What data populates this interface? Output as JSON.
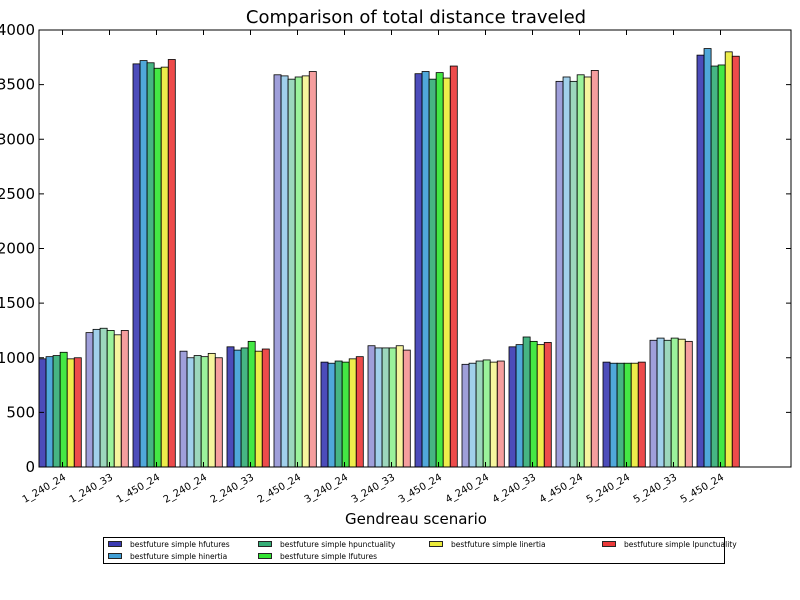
{
  "chart_data": {
    "type": "bar",
    "title": "Comparison of total distance traveled",
    "xlabel": "Gendreau scenario",
    "ylabel": "",
    "ylim": [
      0,
      4000
    ],
    "yticks": [
      "0",
      "500",
      "1000",
      "1500",
      "2000",
      "2500",
      "3000",
      "3500",
      "4000"
    ],
    "grid": false,
    "legend_position": "bottom",
    "categories": [
      "1_240_24",
      "1_240_33",
      "1_450_24",
      "2_240_24",
      "2_240_33",
      "2_450_24",
      "3_240_24",
      "3_240_33",
      "3_450_24",
      "4_240_24",
      "4_240_33",
      "4_450_24",
      "5_240_24",
      "5_240_33",
      "5_450_24"
    ],
    "series": [
      {
        "name": "bestfuture simple hfutures",
        "color": "#1a1aa6",
        "values": [
          990,
          1230,
          3690,
          1060,
          1100,
          3590,
          960,
          1110,
          3600,
          940,
          1100,
          3530,
          960,
          1160,
          3770
        ]
      },
      {
        "name": "bestfuture simple hinertia",
        "color": "#1f8fd0",
        "values": [
          1010,
          1260,
          3720,
          1000,
          1070,
          3580,
          950,
          1090,
          3620,
          950,
          1120,
          3570,
          950,
          1180,
          3830
        ]
      },
      {
        "name": "bestfuture simple hpunctuality",
        "color": "#12a060",
        "values": [
          1020,
          1270,
          3700,
          1020,
          1090,
          3550,
          970,
          1090,
          3550,
          970,
          1190,
          3530,
          950,
          1160,
          3670
        ]
      },
      {
        "name": "bestfuture simple lfutures",
        "color": "#10e010",
        "values": [
          1050,
          1250,
          3650,
          1010,
          1150,
          3570,
          960,
          1090,
          3610,
          980,
          1150,
          3590,
          950,
          1180,
          3680
        ]
      },
      {
        "name": "bestfuture simple linertia",
        "color": "#e8e818",
        "values": [
          990,
          1210,
          3660,
          1040,
          1060,
          3580,
          990,
          1110,
          3560,
          960,
          1120,
          3570,
          950,
          1170,
          3800
        ]
      },
      {
        "name": "bestfuture simple lpunctuality",
        "color": "#e81818",
        "values": [
          1000,
          1250,
          3730,
          1000,
          1080,
          3620,
          1010,
          1070,
          3670,
          970,
          1140,
          3630,
          960,
          1150,
          3760
        ]
      }
    ],
    "legend_entries": [
      {
        "name": "bestfuture simple hfutures",
        "color": "#1a1aa6"
      },
      {
        "name": "bestfuture simple hinertia",
        "color": "#1f8fd0"
      },
      {
        "name": "bestfuture simple hpunctuality",
        "color": "#12a060"
      },
      {
        "name": "bestfuture simple lfutures",
        "color": "#10e010"
      },
      {
        "name": "bestfuture simple linertia",
        "color": "#e8e818"
      },
      {
        "name": "bestfuture simple lpunctuality",
        "color": "#e81818"
      }
    ]
  }
}
